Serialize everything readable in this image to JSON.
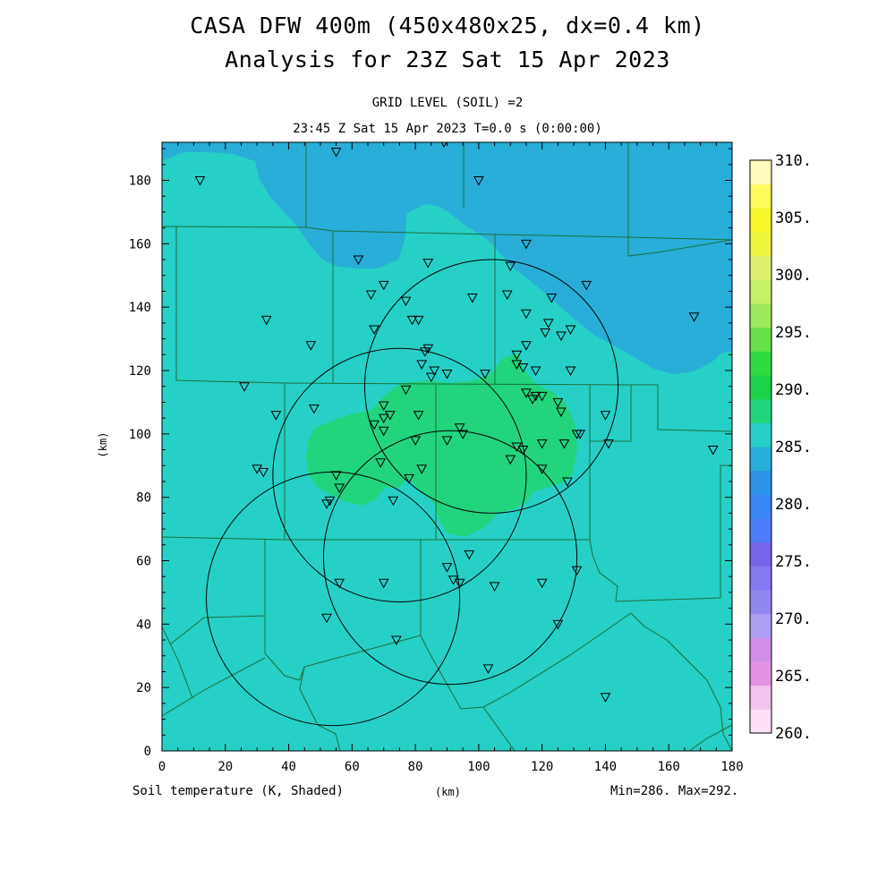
{
  "header": {
    "title_line1": "CASA DFW 400m (450x480x25, dx=0.4 km)",
    "title_line2": "Analysis for 23Z Sat 15 Apr 2023",
    "subtitle_line1": "GRID LEVEL (SOIL) =2",
    "subtitle_line2": "23:45 Z Sat 15 Apr 2023   T=0.0 s (0:00:00)"
  },
  "footer": {
    "field_label": "Soil temperature (K, Shaded)",
    "x_unit": "(km)",
    "min_max": "Min=286. Max=292."
  },
  "axes": {
    "x_label": "(km)",
    "y_label": "(km)",
    "x_range": [
      0,
      180
    ],
    "y_range": [
      0,
      192
    ],
    "x_ticks": [
      "0",
      "20",
      "40",
      "60",
      "80",
      "100",
      "120",
      "140",
      "160",
      "180"
    ],
    "y_ticks": [
      "0",
      "20",
      "40",
      "60",
      "80",
      "100",
      "120",
      "140",
      "160",
      "180"
    ]
  },
  "colorbar": {
    "labels": [
      "260.",
      "265.",
      "270.",
      "275.",
      "280.",
      "285.",
      "290.",
      "295.",
      "300.",
      "305.",
      "310."
    ],
    "colors": [
      "#fde0f8",
      "#f2c4ee",
      "#e294e2",
      "#d08ee6",
      "#ac9ef0",
      "#9088ee",
      "#8479ee",
      "#7466e6",
      "#4e7cf6",
      "#3a86f2",
      "#2c94e6",
      "#28aed8",
      "#26d0c6",
      "#22d47c",
      "#1ed04a",
      "#2edc40",
      "#66e04c",
      "#9ee85c",
      "#c4f06a",
      "#dff070",
      "#eef43c",
      "#f6f628",
      "#fefc5c",
      "#fefcbc"
    ],
    "levels": [
      260,
      310
    ]
  },
  "field": {
    "background_color": "#26d0c6",
    "cool_color": "#28aed8",
    "warm_color": "#22d47c",
    "minimum": 286,
    "maximum": 292
  },
  "radars": [
    {
      "center_km": [
        104,
        115
      ],
      "radius_km": 40
    },
    {
      "center_km": [
        75,
        87
      ],
      "radius_km": 40
    },
    {
      "center_km": [
        54,
        48
      ],
      "radius_km": 40
    },
    {
      "center_km": [
        91,
        61
      ],
      "radius_km": 40
    }
  ],
  "stations_km": [
    [
      12,
      180
    ],
    [
      55,
      189
    ],
    [
      89,
      192
    ],
    [
      100,
      180
    ],
    [
      62,
      155
    ],
    [
      84,
      154
    ],
    [
      110,
      153
    ],
    [
      115,
      160
    ],
    [
      134,
      147
    ],
    [
      70,
      147
    ],
    [
      66,
      144
    ],
    [
      98,
      143
    ],
    [
      109,
      144
    ],
    [
      123,
      143
    ],
    [
      77,
      142
    ],
    [
      115,
      138
    ],
    [
      79,
      136
    ],
    [
      81,
      136
    ],
    [
      168,
      137
    ],
    [
      33,
      136
    ],
    [
      67,
      133
    ],
    [
      122,
      135
    ],
    [
      121,
      132
    ],
    [
      129,
      133
    ],
    [
      126,
      131
    ],
    [
      47,
      128
    ],
    [
      84,
      127
    ],
    [
      83,
      126
    ],
    [
      115,
      128
    ],
    [
      112,
      125
    ],
    [
      82,
      122
    ],
    [
      112,
      122
    ],
    [
      86,
      120
    ],
    [
      90,
      119
    ],
    [
      85,
      118
    ],
    [
      102,
      119
    ],
    [
      114,
      121
    ],
    [
      118,
      120
    ],
    [
      129,
      120
    ],
    [
      26,
      115
    ],
    [
      77,
      114
    ],
    [
      115,
      113
    ],
    [
      117,
      111
    ],
    [
      120,
      112
    ],
    [
      118,
      112
    ],
    [
      125,
      110
    ],
    [
      126,
      107
    ],
    [
      36,
      106
    ],
    [
      48,
      108
    ],
    [
      70,
      109
    ],
    [
      81,
      106
    ],
    [
      70,
      105
    ],
    [
      72,
      106
    ],
    [
      67,
      103
    ],
    [
      94,
      102
    ],
    [
      70,
      101
    ],
    [
      140,
      106
    ],
    [
      131,
      100
    ],
    [
      132,
      100
    ],
    [
      80,
      98
    ],
    [
      90,
      98
    ],
    [
      95,
      100
    ],
    [
      112,
      96
    ],
    [
      114,
      95
    ],
    [
      120,
      97
    ],
    [
      127,
      97
    ],
    [
      141,
      97
    ],
    [
      174,
      95
    ],
    [
      30,
      89
    ],
    [
      32,
      88
    ],
    [
      69,
      91
    ],
    [
      82,
      89
    ],
    [
      78,
      86
    ],
    [
      110,
      92
    ],
    [
      120,
      89
    ],
    [
      128,
      85
    ],
    [
      55,
      87
    ],
    [
      56,
      83
    ],
    [
      53,
      79
    ],
    [
      73,
      79
    ],
    [
      52,
      78
    ],
    [
      97,
      62
    ],
    [
      90,
      58
    ],
    [
      92,
      54
    ],
    [
      94,
      53
    ],
    [
      56,
      53
    ],
    [
      70,
      53
    ],
    [
      105,
      52
    ],
    [
      120,
      53
    ],
    [
      131,
      57
    ],
    [
      52,
      42
    ],
    [
      125,
      40
    ],
    [
      74,
      35
    ],
    [
      103,
      26
    ],
    [
      140,
      17
    ]
  ]
}
